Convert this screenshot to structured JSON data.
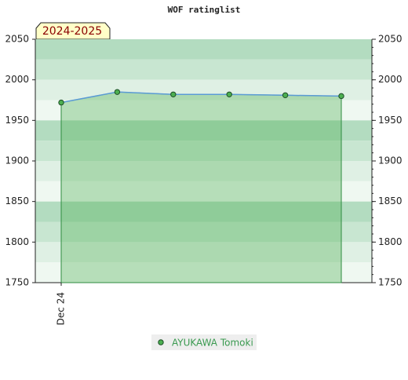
{
  "chart_data": {
    "type": "area",
    "title": "WOF ratinglist",
    "badge": "2024-2025",
    "categories": [
      "Dec 24",
      null,
      null,
      null,
      null,
      null
    ],
    "series": [
      {
        "name": "AYUKAWA Tomoki",
        "color": "#4caf50",
        "values": [
          1972,
          1985,
          1982,
          1982,
          1981,
          1980
        ]
      }
    ],
    "ylim": [
      1750,
      2050
    ],
    "yticks": [
      1750,
      1800,
      1850,
      1900,
      1950,
      2000,
      2050
    ],
    "y2lim": [
      1750,
      2050
    ],
    "y2ticks": [
      1750,
      1800,
      1850,
      1900,
      1950,
      2000,
      2050
    ],
    "grid": true
  }
}
